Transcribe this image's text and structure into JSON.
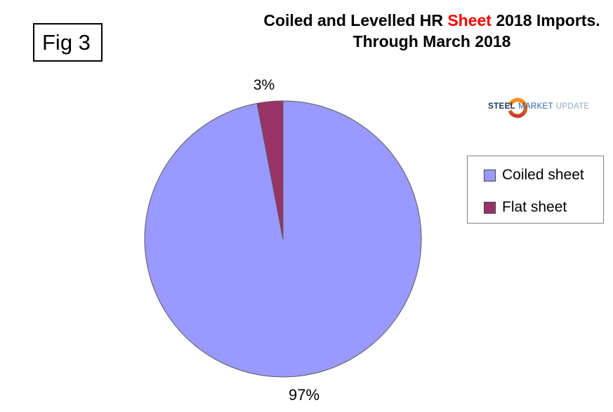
{
  "figure_label": "Fig 3",
  "title": {
    "part1": "Coiled and Levelled HR ",
    "highlight": "Sheet",
    "part2": " 2018 Imports.",
    "line2": "Through March 2018",
    "highlight_color": "#ff0000"
  },
  "logo": {
    "steel": "STEEL",
    "market": "MARKET",
    "update": "UPDATE"
  },
  "legend": {
    "items": [
      {
        "label": "Coiled sheet",
        "color": "#9999ff"
      },
      {
        "label": "Flat sheet",
        "color": "#993366"
      }
    ]
  },
  "chart_data": {
    "type": "pie",
    "title": "Coiled and Levelled HR Sheet 2018 Imports. Through March 2018",
    "categories": [
      "Coiled sheet",
      "Flat sheet"
    ],
    "values": [
      97,
      3
    ],
    "unit": "%",
    "colors": [
      "#9999ff",
      "#993366"
    ],
    "data_labels": [
      "97%",
      "3%"
    ],
    "legend_position": "right",
    "start_angle_deg": 0,
    "direction": "clockwise",
    "stroke_color": "#5a5a5a"
  }
}
